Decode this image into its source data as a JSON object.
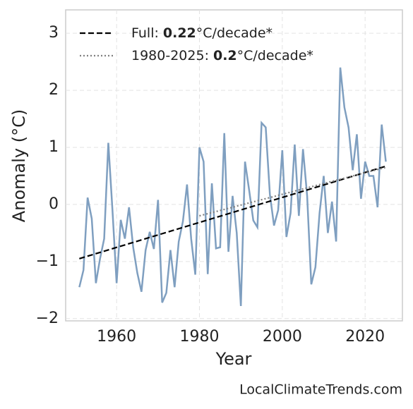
{
  "chart_data": {
    "type": "line",
    "x_label": "Year",
    "y_label": "Anomaly (°C)",
    "source": "LocalClimateTrends.com",
    "x": [
      1951,
      1952,
      1953,
      1954,
      1955,
      1956,
      1957,
      1958,
      1959,
      1960,
      1961,
      1962,
      1963,
      1964,
      1965,
      1966,
      1967,
      1968,
      1969,
      1970,
      1971,
      1972,
      1973,
      1974,
      1975,
      1976,
      1977,
      1978,
      1979,
      1980,
      1981,
      1982,
      1983,
      1984,
      1985,
      1986,
      1987,
      1988,
      1989,
      1990,
      1991,
      1992,
      1993,
      1994,
      1995,
      1996,
      1997,
      1998,
      1999,
      2000,
      2001,
      2002,
      2003,
      2004,
      2005,
      2006,
      2007,
      2008,
      2009,
      2010,
      2011,
      2012,
      2013,
      2014,
      2015,
      2016,
      2017,
      2018,
      2019,
      2020,
      2021,
      2022,
      2023,
      2024,
      2025
    ],
    "values": [
      -1.45,
      -1.15,
      0.12,
      -0.25,
      -1.38,
      -0.95,
      -0.6,
      1.08,
      -0.1,
      -1.38,
      -0.27,
      -0.6,
      -0.05,
      -0.75,
      -1.2,
      -1.53,
      -0.8,
      -0.48,
      -0.78,
      0.08,
      -1.72,
      -1.55,
      -0.8,
      -1.45,
      -0.65,
      -0.3,
      0.35,
      -0.6,
      -1.23,
      1.0,
      0.75,
      -1.22,
      0.37,
      -0.77,
      -0.75,
      1.25,
      -0.83,
      0.15,
      -0.5,
      -1.78,
      0.75,
      0.25,
      -0.28,
      -0.4,
      1.43,
      1.35,
      0.18,
      -0.37,
      -0.1,
      0.95,
      -0.57,
      -0.15,
      1.05,
      -0.2,
      0.97,
      0.15,
      -1.4,
      -1.1,
      -0.15,
      0.5,
      -0.5,
      0.05,
      -0.65,
      2.4,
      1.7,
      1.35,
      0.6,
      1.23,
      0.1,
      0.75,
      0.5,
      0.5,
      -0.05,
      1.4,
      0.75
    ],
    "color": "#7f9fc0",
    "trends": [
      {
        "name": "Full:",
        "slope": 0.22,
        "unit": "°C/decade*",
        "x": [
          1951,
          2025
        ],
        "values": [
          -0.95,
          0.67
        ],
        "color": "#000000",
        "style": "dashed"
      },
      {
        "name": "1980-2025:",
        "slope": 0.2,
        "unit": "°C/decade*",
        "x": [
          1980,
          2025
        ],
        "values": [
          -0.2,
          0.65
        ],
        "color": "#808080",
        "style": "dotted"
      }
    ],
    "xlim": [
      1947.7,
      2029
    ],
    "ylim": [
      -2.04,
      3.41
    ],
    "xticks": [
      1960,
      1980,
      2000,
      2020
    ],
    "yticks": [
      {
        "value": -2,
        "label": "−2"
      },
      {
        "value": -1,
        "label": "−1"
      },
      0,
      1,
      2,
      3
    ],
    "grid": true,
    "legend": "upper left"
  }
}
